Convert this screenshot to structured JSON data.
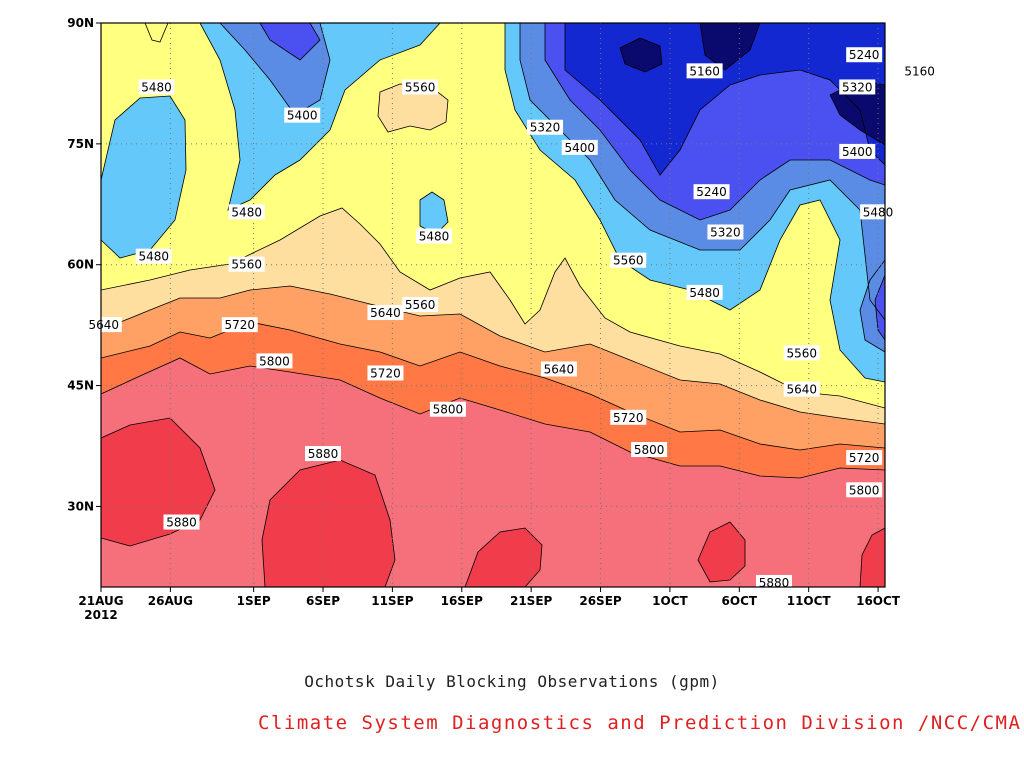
{
  "chart_data": {
    "type": "heatmap",
    "title": "Ochotsk Daily Blocking Observations (gpm)",
    "credit": "Climate System Diagnostics and Prediction Division /NCC/CMA",
    "y_tick_labels": [
      "90N",
      "75N",
      "60N",
      "45N",
      "30N"
    ],
    "y_ticks": [
      90,
      75,
      60,
      45,
      30
    ],
    "ylim": [
      20,
      90
    ],
    "x_tick_labels": [
      "21AUG",
      "26AUG",
      "1SEP",
      "6SEP",
      "11SEP",
      "16SEP",
      "21SEP",
      "26SEP",
      "1OCT",
      "6OCT",
      "11OCT",
      "16OCT"
    ],
    "x_ticks": [
      0,
      5,
      11,
      16,
      21,
      26,
      31,
      36,
      41,
      46,
      51,
      56
    ],
    "x_year_label": "2012",
    "xlim": [
      0,
      56.5
    ],
    "grid": true,
    "contour_levels": [
      5160,
      5240,
      5320,
      5400,
      5480,
      5560,
      5640,
      5720,
      5800,
      5880
    ],
    "colors": {
      "below_5160": "#0a0a6e",
      "5160_5240": "#1428d2",
      "5240_5320": "#4b50f0",
      "5320_5400": "#5a8ce6",
      "5400_5480": "#64c8fa",
      "5480_5560": "#ffff80",
      "5560_5640": "#ffdfa0",
      "5640_5720": "#ffa064",
      "5720_5800": "#ff7846",
      "5800_5880": "#f5707a",
      "above_5880": "#f03c4b"
    },
    "contour_labels": [
      {
        "x": 4.0,
        "y": 82.0,
        "value": "5480"
      },
      {
        "x": 14.5,
        "y": 78.5,
        "value": "5400"
      },
      {
        "x": 23.0,
        "y": 82.0,
        "value": "5560"
      },
      {
        "x": 10.5,
        "y": 66.5,
        "value": "5480"
      },
      {
        "x": 3.8,
        "y": 61.0,
        "value": "5480"
      },
      {
        "x": 10.5,
        "y": 60.0,
        "value": "5560"
      },
      {
        "x": 0.2,
        "y": 52.5,
        "value": "5640"
      },
      {
        "x": 10.0,
        "y": 52.5,
        "value": "5720"
      },
      {
        "x": 12.5,
        "y": 48.0,
        "value": "5800"
      },
      {
        "x": 20.5,
        "y": 54.0,
        "value": "5640"
      },
      {
        "x": 23.0,
        "y": 55.0,
        "value": "5560"
      },
      {
        "x": 24.0,
        "y": 63.5,
        "value": "5480"
      },
      {
        "x": 20.5,
        "y": 46.5,
        "value": "5720"
      },
      {
        "x": 25.0,
        "y": 42.0,
        "value": "5800"
      },
      {
        "x": 16.0,
        "y": 36.5,
        "value": "5880"
      },
      {
        "x": 5.8,
        "y": 28.0,
        "value": "5880"
      },
      {
        "x": 32.0,
        "y": 77.0,
        "value": "5320"
      },
      {
        "x": 34.5,
        "y": 74.5,
        "value": "5400"
      },
      {
        "x": 33.0,
        "y": 47.0,
        "value": "5640"
      },
      {
        "x": 38.0,
        "y": 60.5,
        "value": "5560"
      },
      {
        "x": 38.0,
        "y": 41.0,
        "value": "5720"
      },
      {
        "x": 39.5,
        "y": 37.0,
        "value": "5800"
      },
      {
        "x": 43.5,
        "y": 84.0,
        "value": "5160"
      },
      {
        "x": 44.0,
        "y": 69.0,
        "value": "5240"
      },
      {
        "x": 45.0,
        "y": 64.0,
        "value": "5320"
      },
      {
        "x": 43.5,
        "y": 56.5,
        "value": "5480"
      },
      {
        "x": 50.5,
        "y": 49.0,
        "value": "5560"
      },
      {
        "x": 50.5,
        "y": 44.5,
        "value": "5640"
      },
      {
        "x": 55.0,
        "y": 86.0,
        "value": "5240"
      },
      {
        "x": 54.5,
        "y": 82.0,
        "value": "5320"
      },
      {
        "x": 54.5,
        "y": 74.0,
        "value": "5400"
      },
      {
        "x": 56.0,
        "y": 66.5,
        "value": "5480"
      },
      {
        "x": 59.0,
        "y": 84.0,
        "value": "5160"
      },
      {
        "x": 55.0,
        "y": 36.0,
        "value": "5720"
      },
      {
        "x": 55.0,
        "y": 32.0,
        "value": "5800"
      },
      {
        "x": 48.5,
        "y": 20.5,
        "value": "5880"
      }
    ]
  }
}
